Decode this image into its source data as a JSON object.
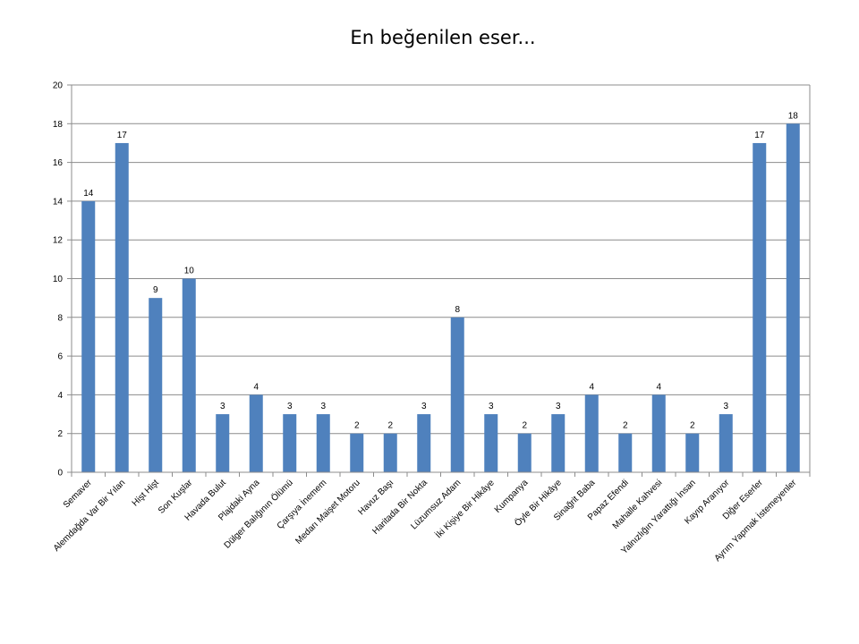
{
  "chart_data": {
    "type": "bar",
    "title": "En beğenilen eser...",
    "xlabel": "",
    "ylabel": "",
    "ylim": [
      0,
      20
    ],
    "yticks": [
      0,
      2,
      4,
      6,
      8,
      10,
      12,
      14,
      16,
      18,
      20
    ],
    "grid": true,
    "legend": "none",
    "bar_color": "#4F81BD",
    "categories": [
      "Semaver",
      "Alemdağda Var Bir Yılan",
      "Hişt Hişt",
      "Son Kuşlar",
      "Havada Bulut",
      "Plajdaki Ayna",
      "Dülger Balığının Ölümü",
      "Çarşıya İnemem",
      "Medarı Maişet Motoru",
      "Havuz Başı",
      "Haritada Bir Nokta",
      "Lüzumsuz Adam",
      "İki Kişiye Bir Hikâye",
      "Kumpanya",
      "Öyle Bir Hikâye",
      "Sinağrit Baba",
      "Papaz Efendi",
      "Mahalle Kahvesi",
      "Yalnızlığın Yarattığı İnsan",
      "Kayıp Aranıyor",
      "Diğer Eserler",
      "Ayrım Yapmak İstemeyenler"
    ],
    "values": [
      14,
      17,
      9,
      10,
      3,
      4,
      3,
      3,
      2,
      2,
      3,
      8,
      3,
      2,
      3,
      4,
      2,
      4,
      2,
      3,
      17,
      18
    ]
  }
}
